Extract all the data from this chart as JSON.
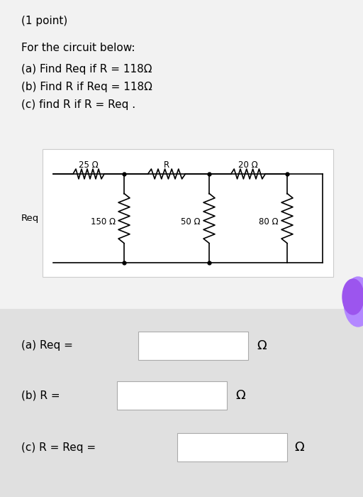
{
  "bg_color": "#e8e8e8",
  "circuit_bg": "#ffffff",
  "answer_bg": "#e0e0e0",
  "title_line": "(1 point)",
  "problem_lines": [
    "For the circuit below:",
    "(a) Find Req if R = 118Ω",
    "(b) Find R if Req = 118Ω",
    "(c) find R if R = Req ."
  ],
  "circuit": {
    "resistors_top": [
      "25 Ω",
      "R",
      "20 Ω"
    ],
    "resistors_bot": [
      "150 Ω",
      "50 Ω",
      "80 Ω"
    ],
    "req_label": "Req"
  },
  "answer_labels": [
    "(a) Req =",
    "(b) R =",
    "(c) R = Req ="
  ],
  "omega": "Ω",
  "font_size_title": 11,
  "font_size_body": 11,
  "font_size_circuit": 8.5,
  "line_color": "#000000",
  "purple_color": "#b388ff",
  "purple_dark": "#9c55ee"
}
